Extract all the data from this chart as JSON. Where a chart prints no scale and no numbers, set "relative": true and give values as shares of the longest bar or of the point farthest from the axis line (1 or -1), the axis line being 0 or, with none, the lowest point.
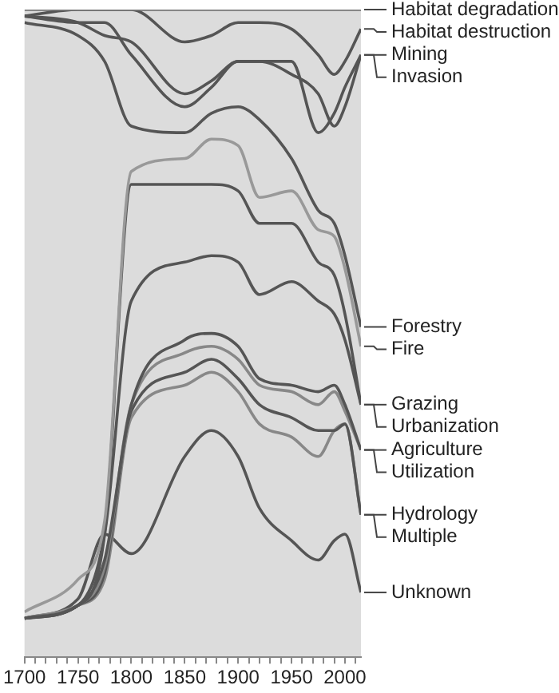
{
  "chart_data": {
    "type": "line",
    "relative": true,
    "x": [
      1700,
      1750,
      1775,
      1800,
      1850,
      1875,
      1900,
      1920,
      1950,
      1975,
      1990,
      2000,
      2015
    ],
    "xlim": [
      1700,
      2015
    ],
    "xticks": [
      1700,
      {
        "value": 1710,
        "label": null
      },
      {
        "value": 1720,
        "label": null
      },
      {
        "value": 1730,
        "label": null
      },
      {
        "value": 1740,
        "label": null
      },
      1750,
      {
        "value": 1760,
        "label": null
      },
      {
        "value": 1770,
        "label": null
      },
      {
        "value": 1780,
        "label": null
      },
      {
        "value": 1790,
        "label": null
      },
      1800,
      {
        "value": 1810,
        "label": null
      },
      {
        "value": 1820,
        "label": null
      },
      {
        "value": 1830,
        "label": null
      },
      {
        "value": 1840,
        "label": null
      },
      1850,
      {
        "value": 1860,
        "label": null
      },
      {
        "value": 1870,
        "label": null
      },
      {
        "value": 1880,
        "label": null
      },
      {
        "value": 1890,
        "label": null
      },
      1900,
      {
        "value": 1910,
        "label": null
      },
      {
        "value": 1920,
        "label": null
      },
      {
        "value": 1930,
        "label": null
      },
      {
        "value": 1940,
        "label": null
      },
      1950,
      {
        "value": 1960,
        "label": null
      },
      {
        "value": 1970,
        "label": null
      },
      {
        "value": 1980,
        "label": null
      },
      {
        "value": 1990,
        "label": null
      },
      2000,
      {
        "value": 2010,
        "label": null
      }
    ],
    "grid": false,
    "legend": false,
    "marker": "none",
    "line_style": "solid",
    "tick_labels": "x",
    "series": [
      {
        "name": "Habitat degradation",
        "color": "#777777",
        "values": [
          1.0,
          1.0,
          1.0,
          1.0,
          1.0,
          1.0,
          1.0,
          1.0,
          1.0,
          1.0,
          1.0,
          1.0,
          1.0
        ]
      },
      {
        "name": "Habitat destruction",
        "color": "#555555",
        "values": [
          0.99,
          1.0,
          1.0,
          1.0,
          0.95,
          0.96,
          0.98,
          0.98,
          0.97,
          0.93,
          0.9,
          0.92,
          0.97
        ]
      },
      {
        "name": "Mining",
        "color": "#555555",
        "values": [
          0.99,
          0.98,
          0.98,
          0.93,
          0.85,
          0.88,
          0.92,
          0.92,
          0.92,
          0.81,
          0.84,
          0.88,
          0.93
        ]
      },
      {
        "name": "Invasion",
        "color": "#555555",
        "values": [
          0.99,
          0.98,
          0.96,
          0.95,
          0.87,
          0.89,
          0.92,
          0.92,
          0.9,
          0.87,
          0.82,
          0.85,
          0.93
        ]
      },
      {
        "name": "Forestry",
        "color": "#555555",
        "values": [
          0.98,
          0.96,
          0.92,
          0.82,
          0.81,
          0.84,
          0.85,
          0.83,
          0.77,
          0.69,
          0.67,
          0.62,
          0.51
        ]
      },
      {
        "name": "Fire",
        "color": "#999999",
        "values": [
          0.07,
          0.12,
          0.21,
          0.75,
          0.77,
          0.8,
          0.79,
          0.71,
          0.72,
          0.66,
          0.65,
          0.6,
          0.48
        ]
      },
      {
        "name": "Grazing",
        "color": "#555555",
        "values": [
          0.06,
          0.08,
          0.19,
          0.73,
          0.73,
          0.73,
          0.72,
          0.67,
          0.67,
          0.61,
          0.59,
          0.53,
          0.39
        ]
      },
      {
        "name": "Urbanization",
        "color": "#555555",
        "values": [
          0.06,
          0.08,
          0.19,
          0.55,
          0.61,
          0.62,
          0.61,
          0.56,
          0.58,
          0.55,
          0.53,
          0.49,
          0.39
        ]
      },
      {
        "name": "Agriculture",
        "color": "#555555",
        "values": [
          0.06,
          0.08,
          0.15,
          0.39,
          0.49,
          0.5,
          0.48,
          0.43,
          0.42,
          0.41,
          0.42,
          0.39,
          0.32
        ]
      },
      {
        "name": "Utilization",
        "color": "#888888",
        "values": [
          0.06,
          0.08,
          0.14,
          0.39,
          0.47,
          0.48,
          0.46,
          0.42,
          0.41,
          0.39,
          0.41,
          0.38,
          0.32
        ]
      },
      {
        "name": "Hydrology",
        "color": "#555555",
        "values": [
          0.06,
          0.08,
          0.13,
          0.38,
          0.44,
          0.46,
          0.43,
          0.39,
          0.37,
          0.35,
          0.35,
          0.36,
          0.22
        ]
      },
      {
        "name": "Multiple",
        "color": "#888888",
        "values": [
          0.06,
          0.08,
          0.12,
          0.37,
          0.42,
          0.44,
          0.41,
          0.36,
          0.34,
          0.31,
          0.35,
          0.36,
          0.22
        ]
      },
      {
        "name": "Unknown",
        "color": "#555555",
        "values": [
          0.06,
          0.09,
          0.19,
          0.16,
          0.31,
          0.35,
          0.31,
          0.23,
          0.18,
          0.15,
          0.18,
          0.19,
          0.1
        ]
      }
    ]
  }
}
